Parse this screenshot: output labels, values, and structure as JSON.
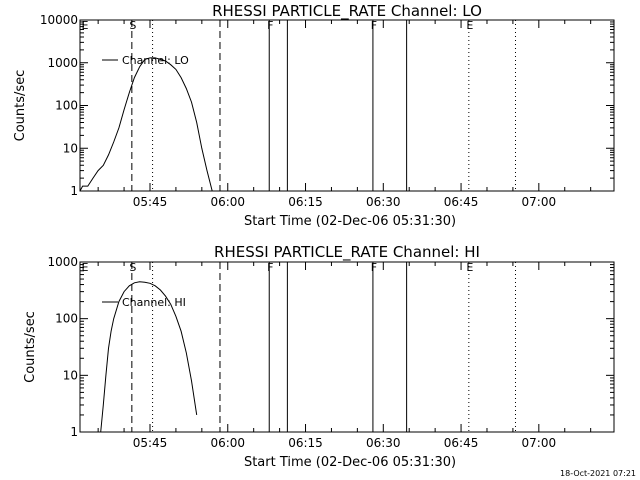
{
  "chart_data": [
    {
      "type": "line",
      "title": "RHESSI PARTICLE_RATE Channel: LO",
      "xlabel": "Start Time (02-Dec-06 05:31:30)",
      "ylabel": "Counts/sec",
      "yscale": "log",
      "ylim": [
        1,
        10000
      ],
      "xlim": [
        "05:31:30",
        "07:14:30"
      ],
      "xticks": [
        "05:45",
        "06:00",
        "06:15",
        "06:30",
        "06:45",
        "07:00"
      ],
      "yticks": [
        "1",
        "10",
        "100",
        "1000",
        "10000"
      ],
      "grid": false,
      "legend": "top-left",
      "series": [
        {
          "name": "Channel: LO",
          "x": [
            "05:31:30",
            "05:32:00",
            "05:33:00",
            "05:34:00",
            "05:35:00",
            "05:36:00",
            "05:37:00",
            "05:38:00",
            "05:39:00",
            "05:40:00",
            "05:41:00",
            "05:42:00",
            "05:43:00",
            "05:44:00",
            "05:45:00",
            "05:46:00",
            "05:47:00",
            "05:48:00",
            "05:49:00",
            "05:50:00",
            "05:51:00",
            "05:52:00",
            "05:53:00",
            "05:54:00",
            "05:55:00",
            "05:56:00",
            "05:57:00"
          ],
          "values": [
            1,
            1.3,
            1.3,
            2,
            3,
            4,
            7,
            14,
            30,
            80,
            200,
            450,
            800,
            1200,
            1300,
            1300,
            1200,
            1100,
            900,
            700,
            450,
            250,
            120,
            40,
            10,
            3,
            1
          ]
        }
      ],
      "vertical_markers": [
        {
          "time": "05:41:30",
          "style": "dashed",
          "label": "S"
        },
        {
          "time": "05:45:30",
          "style": "dotted",
          "label": ""
        },
        {
          "time": "05:58:30",
          "style": "dashed",
          "label": ""
        },
        {
          "time": "06:08:00",
          "style": "solid",
          "label": "F"
        },
        {
          "time": "06:11:30",
          "style": "solid",
          "label": ""
        },
        {
          "time": "06:28:00",
          "style": "solid",
          "label": "F"
        },
        {
          "time": "06:34:30",
          "style": "solid",
          "label": ""
        },
        {
          "time": "06:46:30",
          "style": "dotted",
          "label": "E"
        },
        {
          "time": "06:55:30",
          "style": "dotted",
          "label": ""
        }
      ],
      "edge_label": "E"
    },
    {
      "type": "line",
      "title": "RHESSI PARTICLE_RATE Channel: HI",
      "xlabel": "Start Time (02-Dec-06 05:31:30)",
      "ylabel": "Counts/sec",
      "yscale": "log",
      "ylim": [
        1,
        1000
      ],
      "xlim": [
        "05:31:30",
        "07:14:30"
      ],
      "xticks": [
        "05:45",
        "06:00",
        "06:15",
        "06:30",
        "06:45",
        "07:00"
      ],
      "yticks": [
        "1",
        "10",
        "100",
        "1000"
      ],
      "grid": false,
      "legend": "top-left",
      "series": [
        {
          "name": "Channel: HI",
          "x": [
            "05:35:30",
            "05:36:00",
            "05:36:30",
            "05:37:00",
            "05:37:30",
            "05:38:00",
            "05:39:00",
            "05:40:00",
            "05:41:00",
            "05:42:00",
            "05:43:00",
            "05:44:00",
            "05:45:00",
            "05:46:00",
            "05:47:00",
            "05:48:00",
            "05:49:00",
            "05:50:00",
            "05:51:00",
            "05:52:00",
            "05:53:00",
            "05:54:00"
          ],
          "values": [
            1,
            3,
            10,
            30,
            60,
            100,
            200,
            300,
            380,
            430,
            450,
            440,
            420,
            380,
            320,
            250,
            180,
            110,
            60,
            25,
            8,
            2
          ]
        }
      ],
      "vertical_markers": [
        {
          "time": "05:41:30",
          "style": "dashed",
          "label": "S"
        },
        {
          "time": "05:45:30",
          "style": "dotted",
          "label": ""
        },
        {
          "time": "05:58:30",
          "style": "dashed",
          "label": ""
        },
        {
          "time": "06:08:00",
          "style": "solid",
          "label": "F"
        },
        {
          "time": "06:11:30",
          "style": "solid",
          "label": ""
        },
        {
          "time": "06:28:00",
          "style": "solid",
          "label": "F"
        },
        {
          "time": "06:34:30",
          "style": "solid",
          "label": ""
        },
        {
          "time": "06:46:30",
          "style": "dotted",
          "label": "E"
        },
        {
          "time": "06:55:30",
          "style": "dotted",
          "label": ""
        }
      ],
      "edge_label": "E"
    }
  ],
  "footer": {
    "timestamp": "18-Oct-2021 07:21"
  },
  "colors": {
    "background": "#ffffff",
    "foreground": "#000000"
  }
}
